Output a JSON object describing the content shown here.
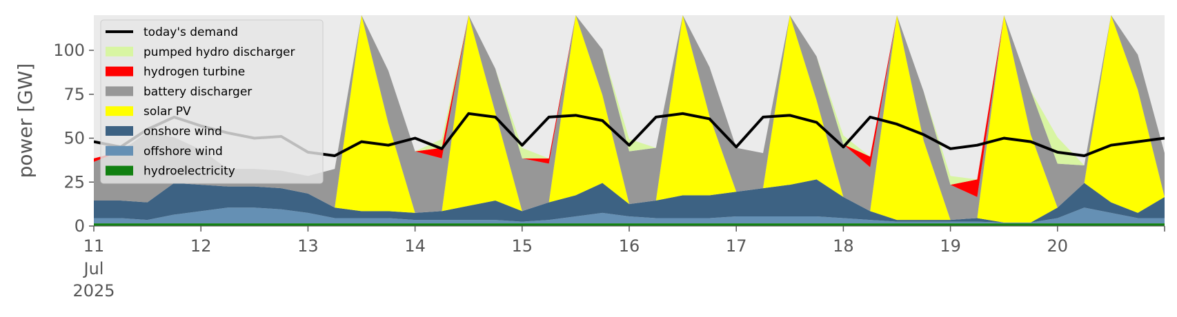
{
  "chart_data": {
    "type": "area",
    "title": "",
    "xlabel": "",
    "ylabel": "power [GW]",
    "ylim": [
      0,
      120
    ],
    "yticks": [
      0,
      25,
      50,
      75,
      100
    ],
    "xlim_days": [
      11,
      21
    ],
    "x_tick_labels": [
      {
        "day": 11,
        "label": "11",
        "sub": [
          "Jul",
          "2025"
        ]
      },
      {
        "day": 12,
        "label": "12"
      },
      {
        "day": 13,
        "label": "13"
      },
      {
        "day": 14,
        "label": "14"
      },
      {
        "day": 15,
        "label": "15"
      },
      {
        "day": 16,
        "label": "16"
      },
      {
        "day": 17,
        "label": "17"
      },
      {
        "day": 18,
        "label": "18"
      },
      {
        "day": 19,
        "label": "19"
      },
      {
        "day": 20,
        "label": "20"
      }
    ],
    "grid": false,
    "legend_position": "top-left",
    "background": "#ebebeb",
    "x_day": [
      11.0,
      11.25,
      11.5,
      11.75,
      12.0,
      12.25,
      12.5,
      12.75,
      13.0,
      13.25,
      13.5,
      13.75,
      14.0,
      14.25,
      14.5,
      14.75,
      15.0,
      15.25,
      15.5,
      15.75,
      16.0,
      16.25,
      16.5,
      16.75,
      17.0,
      17.25,
      17.5,
      17.75,
      18.0,
      18.25,
      18.5,
      18.75,
      19.0,
      19.25,
      19.5,
      19.75,
      20.0,
      20.25,
      20.5,
      20.75,
      21.0
    ],
    "stack_series": [
      {
        "name": "hydroelectricity",
        "color": "#118011",
        "values": [
          1.5,
          1.5,
          1.5,
          1.5,
          1.5,
          1.5,
          1.5,
          1.5,
          1.5,
          1.5,
          1.5,
          1.5,
          1.5,
          1.5,
          1.5,
          1.5,
          1.5,
          1.5,
          1.5,
          1.5,
          1.5,
          1.5,
          1.5,
          1.5,
          1.5,
          1.5,
          1.5,
          1.5,
          1.5,
          1.5,
          1.5,
          1.5,
          1.5,
          1.5,
          1.5,
          1.5,
          1.5,
          1.5,
          1.5,
          1.5,
          1.5
        ]
      },
      {
        "name": "offshore wind",
        "color": "#6590b4",
        "values": [
          3,
          3,
          2,
          5,
          7,
          9,
          9,
          8,
          6,
          3,
          3,
          3,
          2,
          2,
          2,
          2,
          1,
          2,
          4,
          6,
          4,
          3,
          3,
          3,
          4,
          4,
          4,
          4,
          3,
          2,
          1,
          1,
          1,
          1,
          0.5,
          0.5,
          3,
          9,
          6,
          3,
          3
        ]
      },
      {
        "name": "onshore wind",
        "color": "#3d6283",
        "values": [
          10,
          10,
          10,
          18,
          15,
          12,
          12,
          12,
          11,
          6,
          4,
          4,
          4,
          5,
          8,
          11,
          6,
          10,
          12,
          17,
          7,
          10,
          13,
          13,
          14,
          16,
          18,
          21,
          12,
          5,
          1,
          1,
          1,
          2,
          0,
          0,
          6,
          14,
          6,
          3,
          12
        ]
      },
      {
        "name": "solar PV",
        "color": "#ffff00",
        "values": [
          0,
          0,
          0,
          0,
          0,
          0,
          0,
          0,
          0,
          0,
          120,
          50,
          0,
          0,
          120,
          50,
          0,
          0,
          120,
          50,
          0,
          0,
          120,
          45,
          0,
          0,
          120,
          45,
          0,
          0,
          120,
          45,
          0,
          0,
          120,
          50,
          0,
          0,
          120,
          70,
          0
        ]
      },
      {
        "name": "battery discharger",
        "color": "#979797",
        "values": [
          22,
          28,
          40,
          26,
          20,
          10,
          10,
          10,
          10,
          22,
          0,
          30,
          35,
          30,
          0,
          25,
          30,
          22,
          0,
          26,
          30,
          30,
          0,
          28,
          25,
          20,
          0,
          25,
          30,
          25,
          0,
          28,
          20,
          12,
          0,
          25,
          25,
          10,
          0,
          20,
          25
        ]
      },
      {
        "name": "hydrogen turbine",
        "color": "#ff0000",
        "values": [
          2,
          0,
          0,
          0,
          0,
          0,
          0,
          0,
          0,
          0,
          0,
          0,
          0,
          6,
          0,
          0,
          0,
          3,
          0,
          0,
          0,
          0,
          0,
          0,
          0,
          0,
          0,
          0,
          0,
          6,
          0,
          0,
          0,
          10,
          0,
          0,
          0,
          0,
          0,
          0,
          0
        ]
      },
      {
        "name": "pumped hydro discharger",
        "color": "#d8f5a2",
        "values": [
          0,
          0,
          0,
          0,
          0,
          0,
          0,
          0,
          0,
          0,
          0,
          0,
          0,
          5,
          0,
          0,
          6,
          0,
          0,
          0,
          7,
          0,
          0,
          0,
          0,
          0,
          0,
          0,
          5,
          0,
          0,
          0,
          5,
          0,
          0,
          0,
          15,
          0,
          0,
          0,
          0
        ]
      }
    ],
    "demand": {
      "name": "today's demand",
      "color": "#000000",
      "values": [
        48,
        45,
        55,
        62,
        57,
        53,
        50,
        51,
        42,
        40,
        48,
        46,
        50,
        44,
        64,
        62,
        46,
        62,
        63,
        60,
        46,
        62,
        64,
        61,
        45,
        62,
        63,
        59,
        45,
        62,
        58,
        52,
        44,
        46,
        50,
        48,
        42,
        40,
        46,
        48,
        50
      ]
    },
    "legend": [
      {
        "name": "today's demand",
        "kind": "line",
        "color": "#000000"
      },
      {
        "name": "pumped hydro discharger",
        "kind": "patch",
        "color": "#d8f5a2"
      },
      {
        "name": "hydrogen turbine",
        "kind": "patch",
        "color": "#ff0000"
      },
      {
        "name": "battery discharger",
        "kind": "patch",
        "color": "#979797"
      },
      {
        "name": "solar PV",
        "kind": "patch",
        "color": "#ffff00"
      },
      {
        "name": "onshore wind",
        "kind": "patch",
        "color": "#3d6283"
      },
      {
        "name": "offshore wind",
        "kind": "patch",
        "color": "#6590b4"
      },
      {
        "name": "hydroelectricity",
        "kind": "patch",
        "color": "#118011"
      }
    ]
  }
}
